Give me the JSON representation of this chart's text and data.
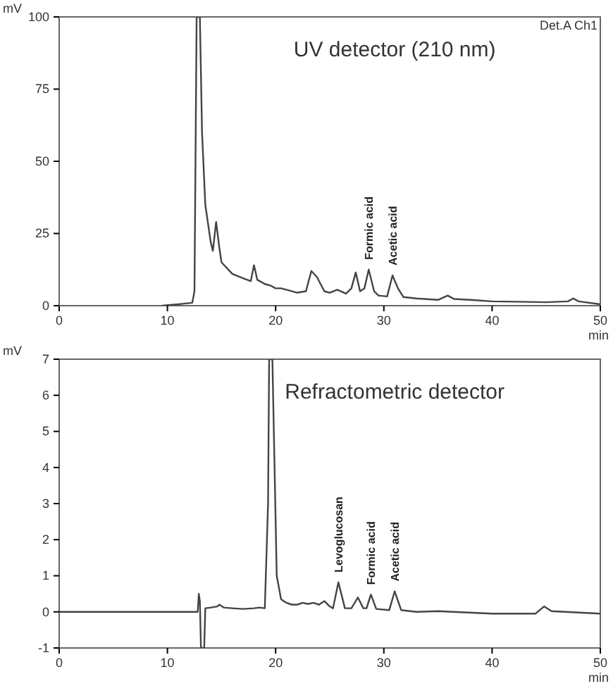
{
  "chart_data": [
    {
      "type": "line",
      "title": "UV detector (210 nm)",
      "xlabel": "min",
      "ylabel": "mV",
      "annotations": [
        "Det.A Ch1",
        {
          "text": "Formic acid",
          "x": 28.6,
          "y": 12.5
        },
        {
          "text": "Acetic acid",
          "x": 30.8,
          "y": 10.5
        }
      ],
      "xlim": [
        0,
        50
      ],
      "ylim": [
        0,
        100
      ],
      "xticks": [
        0,
        10,
        20,
        30,
        40,
        50
      ],
      "yticks": [
        0,
        25,
        50,
        75,
        100
      ],
      "grid": false,
      "series": [
        {
          "color": "#444444",
          "x": [
            9.5,
            11,
            12.3,
            12.5,
            12.7,
            13.0,
            13.2,
            13.5,
            14,
            14.2,
            14.5,
            14.8,
            15,
            16,
            17,
            17.7,
            18,
            18.3,
            19,
            19.5,
            20,
            20.5,
            21,
            22,
            22.8,
            23.3,
            23.8,
            24.5,
            25,
            25.7,
            26.5,
            27,
            27.4,
            27.8,
            28.2,
            28.6,
            29.1,
            29.5,
            30.3,
            30.8,
            31.3,
            31.8,
            33,
            35,
            35.9,
            36.5,
            38,
            40,
            45,
            47,
            47.5,
            48,
            50
          ],
          "values": [
            0,
            0.5,
            1,
            5,
            100,
            100,
            60,
            35,
            22,
            19,
            29,
            20,
            15,
            11,
            9.5,
            8.5,
            14,
            9,
            7.5,
            7,
            6,
            6,
            5.5,
            4.5,
            5,
            12,
            10,
            5,
            4.5,
            5.5,
            4.2,
            6,
            11.5,
            5,
            6,
            12.5,
            5,
            3.5,
            3.2,
            10.5,
            6,
            3,
            2.5,
            2,
            3.5,
            2.3,
            2,
            1.5,
            1.2,
            1.5,
            2.5,
            1.5,
            0.5
          ]
        }
      ]
    },
    {
      "type": "line",
      "title": "Refractometric detector",
      "xlabel": "min",
      "ylabel": "mV",
      "annotations": [
        {
          "text": "Levoglucosan",
          "x": 25.8,
          "y": 0.82
        },
        {
          "text": "Formic acid",
          "x": 28.8,
          "y": 0.48
        },
        {
          "text": "Acetic acid",
          "x": 31,
          "y": 0.57
        }
      ],
      "xlim": [
        0,
        50
      ],
      "ylim": [
        -1,
        7
      ],
      "xticks": [
        0,
        10,
        20,
        30,
        40,
        50
      ],
      "yticks": [
        -1,
        0,
        1,
        2,
        3,
        4,
        5,
        6,
        7
      ],
      "grid": false,
      "series": [
        {
          "color": "#444444",
          "x": [
            0,
            12.8,
            12.9,
            13.0,
            13.1,
            13.4,
            13.5,
            14,
            14.6,
            14.8,
            15.2,
            16,
            17,
            18,
            18.5,
            19,
            19.3,
            19.4,
            19.7,
            19.9,
            20.1,
            20.5,
            21,
            21.5,
            22,
            22.5,
            23,
            23.5,
            24,
            24.5,
            25,
            25.3,
            25.8,
            26.4,
            27,
            27.6,
            28.1,
            28.4,
            28.8,
            29.3,
            30.5,
            31,
            31.6,
            33,
            35,
            40,
            44,
            44.8,
            45.5,
            50
          ],
          "values": [
            0,
            0,
            0.5,
            0.3,
            -1,
            -1,
            0.1,
            0.12,
            0.15,
            0.2,
            0.12,
            0.1,
            0.08,
            0.1,
            0.12,
            0.1,
            3,
            7,
            7,
            4,
            1,
            0.35,
            0.25,
            0.2,
            0.2,
            0.25,
            0.22,
            0.25,
            0.2,
            0.3,
            0.15,
            0.1,
            0.82,
            0.1,
            0.1,
            0.4,
            0.1,
            0.1,
            0.48,
            0.08,
            0.05,
            0.57,
            0.05,
            0,
            0.02,
            -0.05,
            -0.05,
            0.15,
            0.02,
            -0.05
          ]
        }
      ]
    }
  ]
}
